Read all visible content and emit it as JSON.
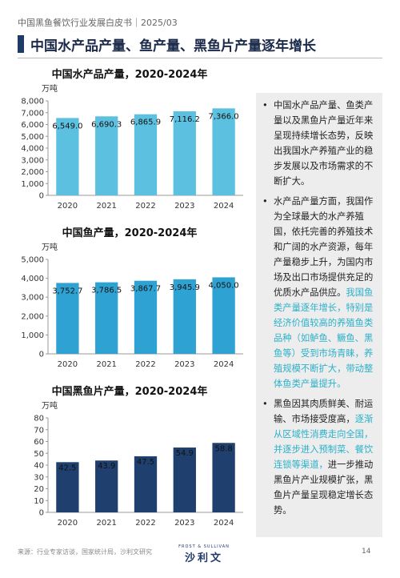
{
  "header": {
    "text": "中国黑鱼餐饮行业发展白皮书｜2025/03"
  },
  "page_title": "中国水产品产量、鱼产量、黑鱼片产量逐年增长",
  "colors": {
    "light_bar": "#5cc1e0",
    "medium_bar": "#2ea3d3",
    "dark_bar": "#1f3f6e",
    "highlight_text": "#2bb0c9"
  },
  "chart_data": [
    {
      "type": "bar",
      "title": "中国水产品产量，2020-2024年",
      "unit": "万吨",
      "categories": [
        "2020",
        "2021",
        "2022",
        "2023",
        "2024"
      ],
      "values": [
        6549.0,
        6690.3,
        6865.9,
        7116.2,
        7366.0
      ],
      "labels": [
        "6,549.0",
        "6,690.3",
        "6,865.9",
        "7,116.2",
        "7,366.0"
      ],
      "ylim": [
        0,
        8000
      ],
      "yticks": [
        "0",
        "1,000",
        "2,000",
        "3,000",
        "4,000",
        "5,000",
        "6,000",
        "7,000",
        "8,000"
      ],
      "color": "#5cc1e0"
    },
    {
      "type": "bar",
      "title": "中国鱼产量，2020-2024年",
      "unit": "万吨",
      "categories": [
        "2020",
        "2021",
        "2022",
        "2023",
        "2024"
      ],
      "values": [
        3752.7,
        3786.5,
        3867.7,
        3945.9,
        4050.0
      ],
      "labels": [
        "3,752.7",
        "3,786.5",
        "3,867.7",
        "3,945.9",
        "4,050.0"
      ],
      "ylim": [
        0,
        5000
      ],
      "yticks": [
        "0",
        "1,000",
        "2,000",
        "3,000",
        "4,000",
        "5,000"
      ],
      "color": "#2ea3d3"
    },
    {
      "type": "bar",
      "title": "中国黑鱼片产量，2020-2024年",
      "unit": "万吨",
      "categories": [
        "2020",
        "2021",
        "2022",
        "2023",
        "2024"
      ],
      "values": [
        42.5,
        43.9,
        47.5,
        54.9,
        58.8
      ],
      "labels": [
        "42.5",
        "43.9",
        "47.5",
        "54.9",
        "58.8"
      ],
      "ylim": [
        0,
        80
      ],
      "yticks": [
        "0",
        "10",
        "20",
        "30",
        "40",
        "50",
        "60",
        "70",
        "80"
      ],
      "color": "#1f3f6e"
    }
  ],
  "bullets": [
    {
      "segments": [
        {
          "text": "中国水产品产量、鱼类产量以及黑鱼片产量近年来呈现持续增长态势，反映出我国水产养殖产业的稳步发展以及市场需求的不断扩大。",
          "hl": false
        }
      ]
    },
    {
      "segments": [
        {
          "text": "水产品产量方面，我国作为全球最大的水产养殖国，依托完善的养殖技术和广阔的水产资源，每年产量稳步上升，为国内市场及出口市场提供充足的优质水产品供应。",
          "hl": false
        },
        {
          "text": "我国鱼类产量逐年增长，特别是经济价值较高的养殖鱼类品种（如鲈鱼、鳜鱼、黑鱼等）受到市场青睐，养殖规模不断扩大，带动整体鱼类产量提升。",
          "hl": true
        }
      ]
    },
    {
      "segments": [
        {
          "text": "黑鱼因其肉质鲜美、耐运输、市场接受度高，",
          "hl": false
        },
        {
          "text": "逐渐从区域性消费走向全国，并逐步进入预制菜、餐饮连锁等渠道，",
          "hl": true
        },
        {
          "text": "进一步推动黑鱼片产业规模扩张，黑鱼片产量呈现稳定增长态势。",
          "hl": false
        }
      ]
    }
  ],
  "footer": {
    "source": "来源：行业专家访谈，国家统计局，沙利文研究",
    "logo_small": "FROST & SULLIVAN",
    "logo_main": "沙利文",
    "page_number": "14"
  }
}
